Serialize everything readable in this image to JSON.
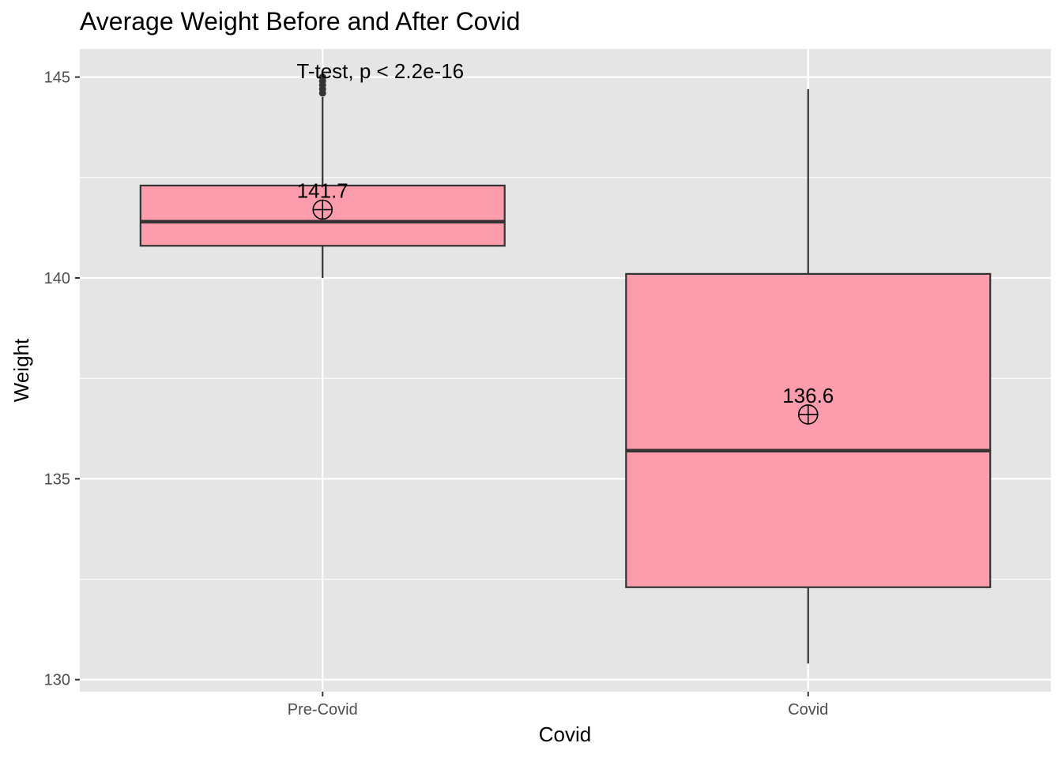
{
  "chart_data": {
    "type": "box",
    "title": "Average Weight Before and After Covid",
    "xlabel": "Covid",
    "ylabel": "Weight",
    "ylim": [
      129.7,
      145.7
    ],
    "yticks": [
      130,
      135,
      140,
      145
    ],
    "grid": true,
    "categories": [
      "Pre-Covid",
      "Covid"
    ],
    "boxes": [
      {
        "category": "Pre-Covid",
        "whisker_low": 140.0,
        "q1": 140.8,
        "median": 141.4,
        "q3": 142.3,
        "whisker_high": 144.5,
        "mean": 141.7,
        "mean_label": "141.7",
        "outliers": [
          144.6,
          144.7,
          144.8,
          144.9,
          145.0
        ]
      },
      {
        "category": "Covid",
        "whisker_low": 130.4,
        "q1": 132.3,
        "median": 135.7,
        "q3": 140.1,
        "whisker_high": 144.7,
        "mean": 136.6,
        "mean_label": "136.6",
        "outliers": []
      }
    ],
    "annotation": {
      "text": "T-test, p < 2.2e-16",
      "x_category": "Pre-Covid",
      "y": 145.0
    },
    "colors": {
      "box_fill": "#FC9CAC",
      "box_stroke": "#333333",
      "panel_bg": "#E5E5E5",
      "grid": "#FFFFFF"
    }
  }
}
